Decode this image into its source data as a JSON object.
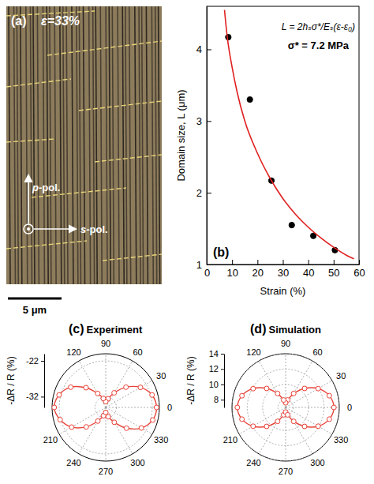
{
  "image_panel": {
    "label": "(a)",
    "annotation": "ε=33%",
    "p_label": "p-pol.",
    "s_label": "s-pol.",
    "scale_bar": "5 μm"
  },
  "chart_data": [
    {
      "type": "scatter",
      "panel": "(b)",
      "xlabel": "Strain (%)",
      "ylabel": "Domain size, L (μm)",
      "annotations": [
        "L = 2hₛσ*/Eₛ(ε-ε₀)",
        "σ* = 7.2 MPa"
      ],
      "xlim": [
        0,
        60
      ],
      "xticks": [
        0,
        10,
        20,
        30,
        40,
        50,
        60
      ],
      "ylim": [
        1,
        4.6
      ],
      "yticks": [
        1,
        2,
        3,
        4
      ],
      "series": [
        {
          "type": "scatter",
          "color": "#000000",
          "marker": "circle",
          "x": [
            8.5,
            17,
            25.5,
            33.5,
            42,
            50.5
          ],
          "values": [
            4.17,
            3.3,
            2.17,
            1.55,
            1.4,
            1.2
          ]
        },
        {
          "type": "line",
          "color": "#e02020",
          "line_style": "solid",
          "x": [
            7,
            8,
            10,
            12,
            15,
            20,
            25,
            30,
            35,
            40,
            45,
            50,
            55,
            58
          ],
          "values": [
            4.55,
            4.2,
            3.75,
            3.4,
            3.0,
            2.55,
            2.2,
            1.92,
            1.7,
            1.52,
            1.37,
            1.24,
            1.13,
            1.08
          ]
        }
      ]
    },
    {
      "type": "polar",
      "panel": "(c)",
      "title": "Experiment",
      "ylabel": "-ΔR / R (%)",
      "rlim": [
        -35,
        -20
      ],
      "rticks": [
        -32,
        -22
      ],
      "thetaticks": [
        0,
        30,
        60,
        90,
        120,
        210,
        240,
        270,
        300,
        330
      ],
      "color": "#e8443a",
      "marker": "open_circle",
      "theta": [
        0,
        15,
        30,
        45,
        60,
        75,
        90,
        105,
        120,
        135,
        150,
        165,
        180,
        195,
        210,
        225,
        240,
        255,
        270,
        285,
        300,
        315,
        330,
        345
      ],
      "values": [
        -20.8,
        -21.6,
        -23.8,
        -27.0,
        -30.3,
        -32.5,
        -33.4,
        -32.4,
        -30.5,
        -27.2,
        -23.7,
        -21.5,
        -20.6,
        -21.8,
        -24.0,
        -27.3,
        -30.6,
        -32.6,
        -33.6,
        -32.3,
        -30.2,
        -26.8,
        -23.5,
        -21.4
      ]
    },
    {
      "type": "polar",
      "panel": "(d)",
      "title": "Simulation",
      "ylabel": "-ΔR / R (%)",
      "rlim": [
        7,
        14
      ],
      "rticks": [
        8,
        10,
        12,
        14
      ],
      "thetaticks": [
        0,
        30,
        60,
        90,
        120,
        210,
        240,
        270,
        300,
        330
      ],
      "color": "#e8443a",
      "marker": "open_circle",
      "theta": [
        0,
        15,
        30,
        45,
        60,
        75,
        90,
        105,
        120,
        135,
        150,
        165,
        180,
        195,
        210,
        225,
        240,
        255,
        270,
        285,
        300,
        315,
        330,
        345
      ],
      "values": [
        13.3,
        12.9,
        11.9,
        10.5,
        9.1,
        8.0,
        7.6,
        8.0,
        9.1,
        10.5,
        11.9,
        12.9,
        13.3,
        12.9,
        11.9,
        10.5,
        9.1,
        8.0,
        7.6,
        8.0,
        9.1,
        10.5,
        11.9,
        12.9
      ]
    }
  ]
}
